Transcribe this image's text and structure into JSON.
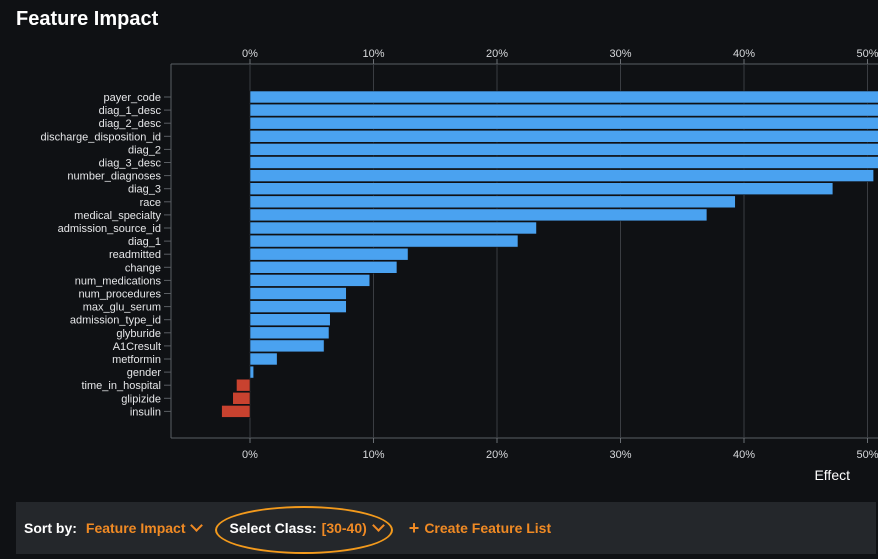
{
  "title": "Feature Impact",
  "colors": {
    "positive": "#4aa2f0",
    "negative": "#c8422f",
    "accent": "#f08a24"
  },
  "chart_data": {
    "type": "bar",
    "orientation": "horizontal",
    "title": "",
    "xlabel": "Effect",
    "ylabel": "",
    "xlim": [
      -0.065,
      0.515
    ],
    "xticks": [
      0,
      0.1,
      0.2,
      0.3,
      0.4,
      0.5
    ],
    "xtick_labels": [
      "0%",
      "10%",
      "20%",
      "30%",
      "40%",
      "50%"
    ],
    "tick_positions": "top-and-bottom",
    "grid": true,
    "categories": [
      "payer_code",
      "diag_1_desc",
      "diag_2_desc",
      "discharge_disposition_id",
      "diag_2",
      "diag_3_desc",
      "number_diagnoses",
      "diag_3",
      "race",
      "medical_specialty",
      "admission_source_id",
      "diag_1",
      "readmitted",
      "change",
      "num_medications",
      "num_procedures",
      "max_glu_serum",
      "admission_type_id",
      "glyburide",
      "A1Cresult",
      "metformin",
      "gender",
      "time_in_hospital",
      "glipizide",
      "insulin"
    ],
    "values": [
      0.515,
      0.515,
      0.515,
      0.515,
      0.515,
      0.515,
      0.505,
      0.472,
      0.393,
      0.37,
      0.232,
      0.217,
      0.128,
      0.119,
      0.097,
      0.078,
      0.078,
      0.065,
      0.064,
      0.06,
      0.022,
      0.003,
      -0.011,
      -0.014,
      -0.023
    ]
  },
  "footer": {
    "sort_label": "Sort by:",
    "sort_value": "Feature Impact",
    "class_label": "Select Class:",
    "class_value": "[30-40)",
    "create_label": "Create Feature List"
  }
}
